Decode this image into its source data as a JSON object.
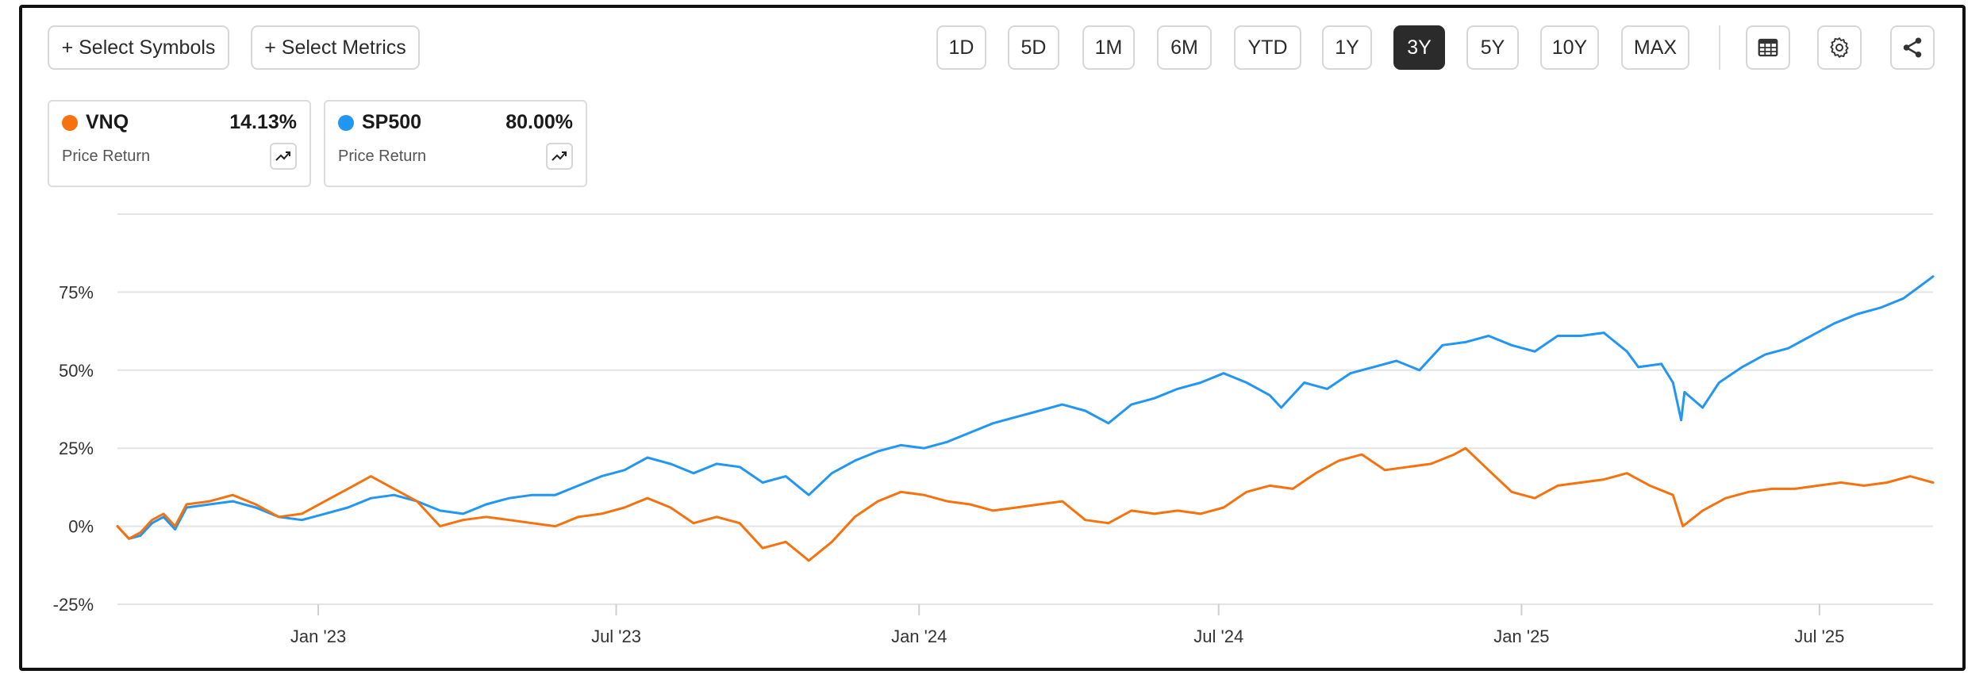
{
  "toolbar": {
    "select_symbols": "+ Select Symbols",
    "select_metrics": "+ Select Metrics",
    "ranges": [
      "1D",
      "5D",
      "1M",
      "6M",
      "YTD",
      "1Y",
      "3Y",
      "5Y",
      "10Y",
      "MAX"
    ],
    "active_range": "3Y",
    "icons": [
      "table-icon",
      "gear-icon",
      "share-icon"
    ]
  },
  "legend_cards": [
    {
      "symbol": "VNQ",
      "value": "14.13%",
      "metric": "Price Return",
      "color": "#F5720F"
    },
    {
      "symbol": "SP500",
      "value": "80.00%",
      "metric": "Price Return",
      "color": "#2196F3"
    }
  ],
  "chart_data": {
    "type": "line",
    "title": "",
    "xlabel": "",
    "ylabel": "",
    "ylim": [
      -25,
      100
    ],
    "xlim": [
      "2022-09-01",
      "2025-09-08"
    ],
    "yticks": [
      -25,
      0,
      25,
      50,
      75
    ],
    "ytick_labels": [
      "-25%",
      "0%",
      "25%",
      "50%",
      "75%"
    ],
    "xtick_dates": [
      "2023-01-01",
      "2023-07-01",
      "2024-01-01",
      "2024-07-01",
      "2025-01-01",
      "2025-07-01"
    ],
    "xtick_labels": [
      "Jan '23",
      "Jul '23",
      "Jan '24",
      "Jul '24",
      "Jan '25",
      "Jul '25"
    ],
    "grid": true,
    "series": [
      {
        "name": "SP500",
        "color": "#2196F3",
        "points": [
          [
            "2022-09-01",
            0
          ],
          [
            "2022-09-08",
            -4
          ],
          [
            "2022-09-15",
            -3
          ],
          [
            "2022-09-22",
            1
          ],
          [
            "2022-09-29",
            3
          ],
          [
            "2022-10-06",
            -1
          ],
          [
            "2022-10-13",
            6
          ],
          [
            "2022-10-27",
            7
          ],
          [
            "2022-11-10",
            8
          ],
          [
            "2022-11-24",
            6
          ],
          [
            "2022-12-08",
            3
          ],
          [
            "2022-12-22",
            2
          ],
          [
            "2023-01-05",
            4
          ],
          [
            "2023-01-19",
            6
          ],
          [
            "2023-02-02",
            9
          ],
          [
            "2023-02-16",
            10
          ],
          [
            "2023-03-02",
            8
          ],
          [
            "2023-03-16",
            5
          ],
          [
            "2023-03-30",
            4
          ],
          [
            "2023-04-13",
            7
          ],
          [
            "2023-04-27",
            9
          ],
          [
            "2023-05-11",
            10
          ],
          [
            "2023-05-25",
            10
          ],
          [
            "2023-06-08",
            13
          ],
          [
            "2023-06-22",
            16
          ],
          [
            "2023-07-06",
            18
          ],
          [
            "2023-07-20",
            22
          ],
          [
            "2023-08-03",
            20
          ],
          [
            "2023-08-17",
            17
          ],
          [
            "2023-08-31",
            20
          ],
          [
            "2023-09-14",
            19
          ],
          [
            "2023-09-28",
            14
          ],
          [
            "2023-10-12",
            16
          ],
          [
            "2023-10-26",
            10
          ],
          [
            "2023-11-09",
            17
          ],
          [
            "2023-11-23",
            21
          ],
          [
            "2023-12-07",
            24
          ],
          [
            "2023-12-21",
            26
          ],
          [
            "2024-01-04",
            25
          ],
          [
            "2024-01-18",
            27
          ],
          [
            "2024-02-01",
            30
          ],
          [
            "2024-02-15",
            33
          ],
          [
            "2024-02-29",
            35
          ],
          [
            "2024-03-14",
            37
          ],
          [
            "2024-03-28",
            39
          ],
          [
            "2024-04-11",
            37
          ],
          [
            "2024-04-25",
            33
          ],
          [
            "2024-05-09",
            39
          ],
          [
            "2024-05-23",
            41
          ],
          [
            "2024-06-06",
            44
          ],
          [
            "2024-06-20",
            46
          ],
          [
            "2024-07-04",
            49
          ],
          [
            "2024-07-18",
            46
          ],
          [
            "2024-08-01",
            42
          ],
          [
            "2024-08-08",
            38
          ],
          [
            "2024-08-22",
            46
          ],
          [
            "2024-09-05",
            44
          ],
          [
            "2024-09-19",
            49
          ],
          [
            "2024-10-03",
            51
          ],
          [
            "2024-10-17",
            53
          ],
          [
            "2024-10-31",
            50
          ],
          [
            "2024-11-14",
            58
          ],
          [
            "2024-11-28",
            59
          ],
          [
            "2024-12-12",
            61
          ],
          [
            "2024-12-26",
            58
          ],
          [
            "2025-01-09",
            56
          ],
          [
            "2025-01-23",
            61
          ],
          [
            "2025-02-06",
            61
          ],
          [
            "2025-02-20",
            62
          ],
          [
            "2025-03-06",
            56
          ],
          [
            "2025-03-13",
            51
          ],
          [
            "2025-03-27",
            52
          ],
          [
            "2025-04-03",
            46
          ],
          [
            "2025-04-08",
            34
          ],
          [
            "2025-04-10",
            43
          ],
          [
            "2025-04-21",
            38
          ],
          [
            "2025-05-01",
            46
          ],
          [
            "2025-05-15",
            51
          ],
          [
            "2025-05-29",
            55
          ],
          [
            "2025-06-12",
            57
          ],
          [
            "2025-06-26",
            61
          ],
          [
            "2025-07-10",
            65
          ],
          [
            "2025-07-24",
            68
          ],
          [
            "2025-08-07",
            70
          ],
          [
            "2025-08-21",
            73
          ],
          [
            "2025-09-08",
            80
          ]
        ]
      },
      {
        "name": "VNQ",
        "color": "#F5720F",
        "points": [
          [
            "2022-09-01",
            0
          ],
          [
            "2022-09-08",
            -4
          ],
          [
            "2022-09-15",
            -2
          ],
          [
            "2022-09-22",
            2
          ],
          [
            "2022-09-29",
            4
          ],
          [
            "2022-10-06",
            0
          ],
          [
            "2022-10-13",
            7
          ],
          [
            "2022-10-27",
            8
          ],
          [
            "2022-11-10",
            10
          ],
          [
            "2022-11-24",
            7
          ],
          [
            "2022-12-08",
            3
          ],
          [
            "2022-12-22",
            4
          ],
          [
            "2023-01-05",
            8
          ],
          [
            "2023-01-19",
            12
          ],
          [
            "2023-02-02",
            16
          ],
          [
            "2023-02-16",
            12
          ],
          [
            "2023-03-02",
            8
          ],
          [
            "2023-03-16",
            0
          ],
          [
            "2023-03-30",
            2
          ],
          [
            "2023-04-13",
            3
          ],
          [
            "2023-04-27",
            2
          ],
          [
            "2023-05-11",
            1
          ],
          [
            "2023-05-25",
            0
          ],
          [
            "2023-06-08",
            3
          ],
          [
            "2023-06-22",
            4
          ],
          [
            "2023-07-06",
            6
          ],
          [
            "2023-07-20",
            9
          ],
          [
            "2023-08-03",
            6
          ],
          [
            "2023-08-17",
            1
          ],
          [
            "2023-08-31",
            3
          ],
          [
            "2023-09-14",
            1
          ],
          [
            "2023-09-28",
            -7
          ],
          [
            "2023-10-12",
            -5
          ],
          [
            "2023-10-26",
            -11
          ],
          [
            "2023-11-09",
            -5
          ],
          [
            "2023-11-23",
            3
          ],
          [
            "2023-12-07",
            8
          ],
          [
            "2023-12-21",
            11
          ],
          [
            "2024-01-04",
            10
          ],
          [
            "2024-01-18",
            8
          ],
          [
            "2024-02-01",
            7
          ],
          [
            "2024-02-15",
            5
          ],
          [
            "2024-02-29",
            6
          ],
          [
            "2024-03-14",
            7
          ],
          [
            "2024-03-28",
            8
          ],
          [
            "2024-04-11",
            2
          ],
          [
            "2024-04-25",
            1
          ],
          [
            "2024-05-09",
            5
          ],
          [
            "2024-05-23",
            4
          ],
          [
            "2024-06-06",
            5
          ],
          [
            "2024-06-20",
            4
          ],
          [
            "2024-07-04",
            6
          ],
          [
            "2024-07-18",
            11
          ],
          [
            "2024-08-01",
            13
          ],
          [
            "2024-08-15",
            12
          ],
          [
            "2024-08-29",
            17
          ],
          [
            "2024-09-12",
            21
          ],
          [
            "2024-09-26",
            23
          ],
          [
            "2024-10-10",
            18
          ],
          [
            "2024-10-24",
            19
          ],
          [
            "2024-11-07",
            20
          ],
          [
            "2024-11-21",
            23
          ],
          [
            "2024-11-28",
            25
          ],
          [
            "2024-12-12",
            18
          ],
          [
            "2024-12-26",
            11
          ],
          [
            "2025-01-09",
            9
          ],
          [
            "2025-01-23",
            13
          ],
          [
            "2025-02-06",
            14
          ],
          [
            "2025-02-20",
            15
          ],
          [
            "2025-03-06",
            17
          ],
          [
            "2025-03-20",
            13
          ],
          [
            "2025-04-03",
            10
          ],
          [
            "2025-04-09",
            0
          ],
          [
            "2025-04-21",
            5
          ],
          [
            "2025-05-05",
            9
          ],
          [
            "2025-05-19",
            11
          ],
          [
            "2025-06-02",
            12
          ],
          [
            "2025-06-16",
            12
          ],
          [
            "2025-06-30",
            13
          ],
          [
            "2025-07-14",
            14
          ],
          [
            "2025-07-28",
            13
          ],
          [
            "2025-08-11",
            14
          ],
          [
            "2025-08-25",
            16
          ],
          [
            "2025-09-08",
            14
          ]
        ]
      }
    ]
  }
}
